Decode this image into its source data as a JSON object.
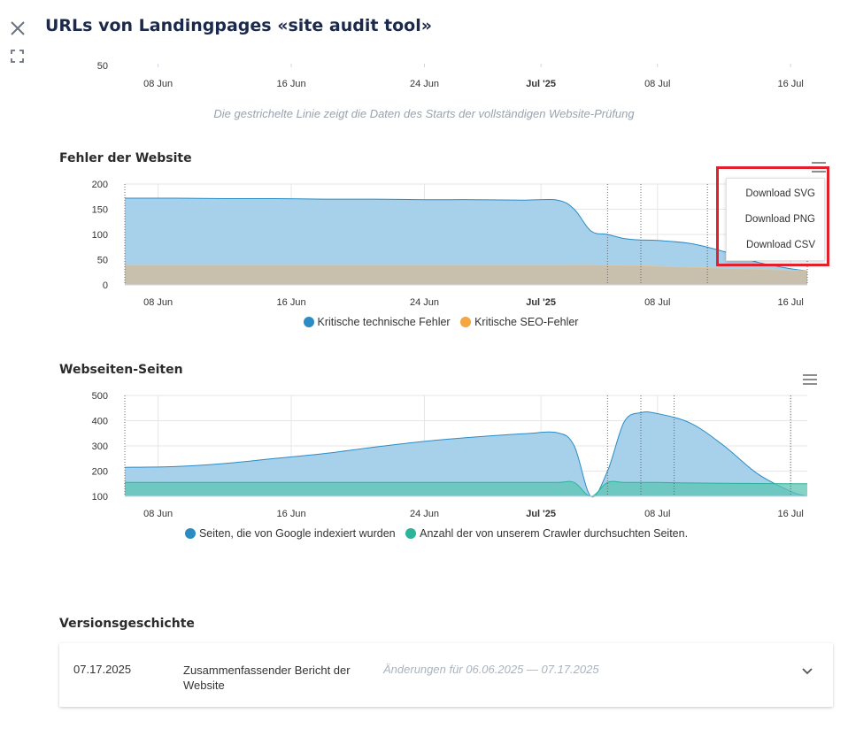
{
  "header": {
    "title": "URLs von Landingpages «site audit tool»",
    "close_icon": "close-icon",
    "expand_icon": "fullscreen-icon"
  },
  "top_chart": {
    "y_tick_partial": "50",
    "x_ticks": [
      "08 Jun",
      "16 Jun",
      "24 Jun",
      "Jul '25",
      "08 Jul",
      "16 Jul"
    ]
  },
  "note": "Die gestrichelte Linie zeigt die Daten des Starts der vollständigen Website-Prüfung",
  "errors_section": {
    "title": "Fehler der Website",
    "menu_icon": "hamburger-menu-icon",
    "menu_items": [
      "Download SVG",
      "Download PNG",
      "Download CSV"
    ]
  },
  "pages_section": {
    "title": "Webseiten-Seiten",
    "menu_icon": "hamburger-menu-icon"
  },
  "version_history": {
    "title": "Versionsgeschichte",
    "entries": [
      {
        "date": "07.17.2025",
        "name": "Zusammenfassender Bericht der Website",
        "range": "Änderungen für 06.06.2025 — 07.17.2025",
        "expand_icon": "chevron-down-icon"
      }
    ]
  },
  "chart_data": [
    {
      "type": "area",
      "x": [
        "06 Jun",
        "09 Jun",
        "12 Jun",
        "15 Jun",
        "18 Jun",
        "21 Jun",
        "24 Jun",
        "27 Jun",
        "30 Jun",
        "02 Jul",
        "03 Jul",
        "04 Jul",
        "05 Jul",
        "06 Jul",
        "07 Jul",
        "08 Jul",
        "10 Jul",
        "12 Jul",
        "14 Jul",
        "16 Jul",
        "17 Jul"
      ],
      "series": [
        {
          "name": "Kritische technische Fehler",
          "color": "#2b8cc4",
          "values": [
            172,
            172,
            171,
            171,
            170,
            170,
            169,
            169,
            168,
            168,
            150,
            107,
            100,
            92,
            89,
            88,
            82,
            66,
            45,
            32,
            28
          ]
        },
        {
          "name": "Kritische SEO-Fehler",
          "color": "#f4a640",
          "values": [
            40,
            40,
            40,
            40,
            40,
            40,
            40,
            40,
            40,
            40,
            40,
            40,
            39,
            39,
            38,
            37,
            35,
            33,
            31,
            29,
            28
          ]
        }
      ],
      "ylim": [
        0,
        200
      ],
      "y_ticks": [
        0,
        50,
        100,
        150,
        200
      ],
      "x_ticks": [
        "08 Jun",
        "16 Jun",
        "24 Jun",
        "Jul '25",
        "08 Jul",
        "16 Jul"
      ],
      "grid": true,
      "legend": "bottom"
    },
    {
      "type": "area",
      "x": [
        "06 Jun",
        "09 Jun",
        "12 Jun",
        "15 Jun",
        "18 Jun",
        "21 Jun",
        "24 Jun",
        "27 Jun",
        "30 Jun",
        "02 Jul",
        "03 Jul",
        "04 Jul",
        "05 Jul",
        "06 Jul",
        "07 Jul",
        "08 Jul",
        "10 Jul",
        "12 Jul",
        "14 Jul",
        "16 Jul",
        "17 Jul"
      ],
      "series": [
        {
          "name": "Seiten, die von Google indexiert wurden",
          "color": "#2b8cc4",
          "values": [
            215,
            218,
            230,
            250,
            270,
            295,
            318,
            335,
            348,
            352,
            300,
            100,
            200,
            395,
            432,
            428,
            390,
            300,
            190,
            120,
            100
          ]
        },
        {
          "name": "Anzahl der von unserem Crawler durchsuchten Seiten.",
          "color": "#2ab49a",
          "values": [
            155,
            155,
            155,
            155,
            155,
            155,
            155,
            155,
            155,
            155,
            155,
            100,
            155,
            155,
            155,
            155,
            153,
            152,
            151,
            150,
            150
          ]
        }
      ],
      "ylim": [
        100,
        500
      ],
      "y_ticks": [
        100,
        200,
        300,
        400,
        500
      ],
      "x_ticks": [
        "08 Jun",
        "16 Jun",
        "24 Jun",
        "Jul '25",
        "08 Jul",
        "16 Jul"
      ],
      "grid": true,
      "legend": "bottom"
    }
  ]
}
